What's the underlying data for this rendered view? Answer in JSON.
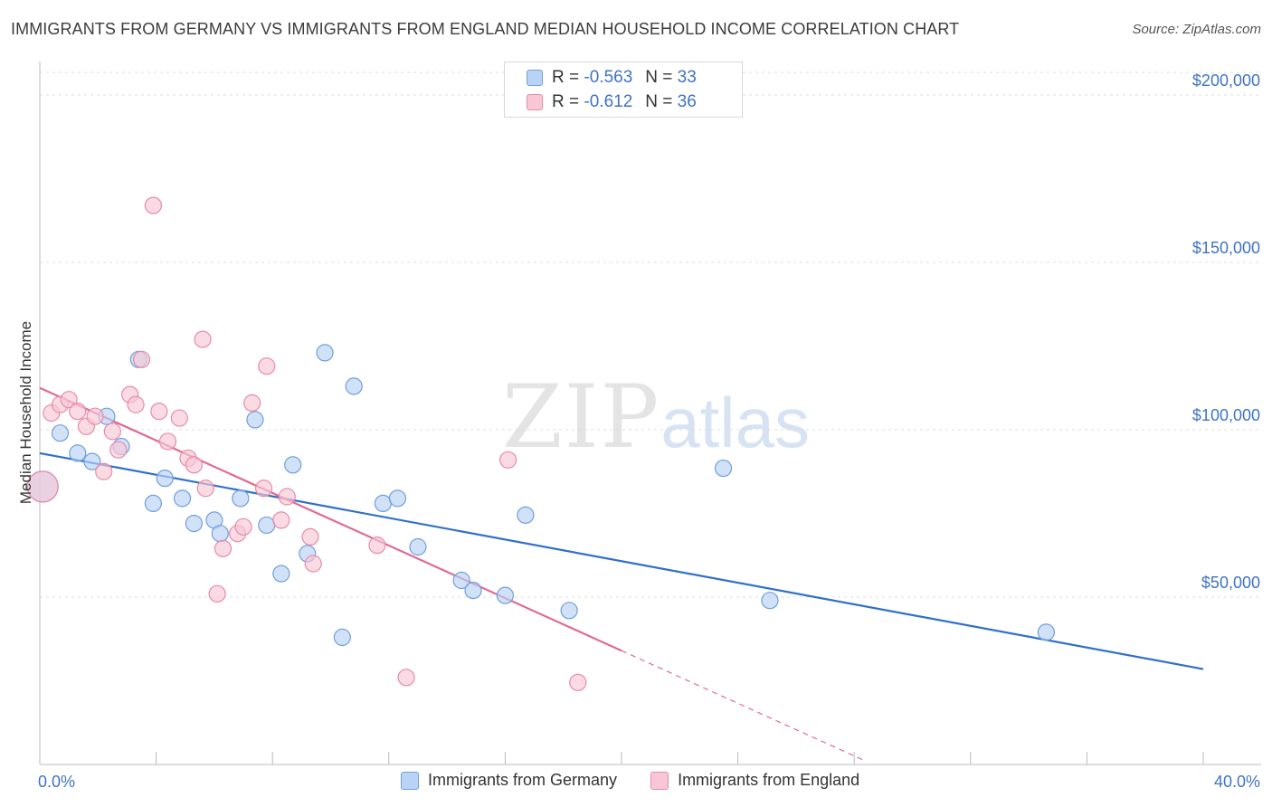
{
  "header": {
    "title": "IMMIGRANTS FROM GERMANY VS IMMIGRANTS FROM ENGLAND MEDIAN HOUSEHOLD INCOME CORRELATION CHART",
    "source": "Source: ZipAtlas.com"
  },
  "watermark": {
    "part1": "ZIP",
    "part2": "atlas"
  },
  "colors": {
    "germany_fill": "#b9d3f5",
    "germany_stroke": "#6f9fdd",
    "germany_line": "#2f6fcc",
    "england_fill": "#f8c7d6",
    "england_stroke": "#e88aa8",
    "england_line": "#e06a94",
    "tick_text": "#3f73c4",
    "grid": "#dcdcdc"
  },
  "legend": {
    "rows": [
      {
        "r_label": "R =",
        "r_value": "-0.563",
        "n_label": "N =",
        "n_value": "33"
      },
      {
        "r_label": "R =",
        "r_value": "-0.612",
        "n_label": "N =",
        "n_value": "36"
      }
    ]
  },
  "chart_data": {
    "type": "scatter",
    "title": "IMMIGRANTS FROM GERMANY VS IMMIGRANTS FROM ENGLAND MEDIAN HOUSEHOLD INCOME CORRELATION CHART",
    "xlabel": "",
    "ylabel": "Median Household Income",
    "xlim": [
      0,
      40
    ],
    "ylim": [
      0,
      210000
    ],
    "x_tick_labels": [
      "0.0%",
      "40.0%"
    ],
    "y_ticks": [
      50000,
      100000,
      150000,
      200000
    ],
    "y_tick_labels": [
      "$50,000",
      "$100,000",
      "$150,000",
      "$200,000"
    ],
    "grid": true,
    "legend_position": "top-center",
    "series": [
      {
        "name": "Immigrants from Germany",
        "r": -0.563,
        "n": 33,
        "trend": {
          "x": [
            0,
            40
          ],
          "y": [
            93000,
            28500
          ]
        },
        "points": [
          {
            "x": 0.1,
            "y": 83000,
            "big": true
          },
          {
            "x": 0.7,
            "y": 99000
          },
          {
            "x": 1.3,
            "y": 93000
          },
          {
            "x": 1.8,
            "y": 90500
          },
          {
            "x": 2.3,
            "y": 104000
          },
          {
            "x": 2.8,
            "y": 95000
          },
          {
            "x": 3.4,
            "y": 121000
          },
          {
            "x": 3.9,
            "y": 78000
          },
          {
            "x": 4.3,
            "y": 85500
          },
          {
            "x": 4.9,
            "y": 79500
          },
          {
            "x": 5.3,
            "y": 72000
          },
          {
            "x": 6.0,
            "y": 73000
          },
          {
            "x": 6.2,
            "y": 69000
          },
          {
            "x": 6.9,
            "y": 79500
          },
          {
            "x": 7.4,
            "y": 103000
          },
          {
            "x": 7.8,
            "y": 71500
          },
          {
            "x": 8.3,
            "y": 57000
          },
          {
            "x": 8.7,
            "y": 89500
          },
          {
            "x": 9.2,
            "y": 63000
          },
          {
            "x": 9.8,
            "y": 123000
          },
          {
            "x": 10.4,
            "y": 38000
          },
          {
            "x": 10.8,
            "y": 113000
          },
          {
            "x": 11.8,
            "y": 78000
          },
          {
            "x": 12.3,
            "y": 79500
          },
          {
            "x": 13.0,
            "y": 65000
          },
          {
            "x": 14.5,
            "y": 55000
          },
          {
            "x": 14.9,
            "y": 52000
          },
          {
            "x": 16.0,
            "y": 50500
          },
          {
            "x": 16.7,
            "y": 74500
          },
          {
            "x": 18.2,
            "y": 46000
          },
          {
            "x": 23.5,
            "y": 88500
          },
          {
            "x": 25.1,
            "y": 49000
          },
          {
            "x": 34.6,
            "y": 39500
          }
        ]
      },
      {
        "name": "Immigrants from England",
        "r": -0.612,
        "n": 36,
        "trend": {
          "x": [
            0,
            20
          ],
          "y": [
            112500,
            34000
          ]
        },
        "trend_dashed": {
          "x": [
            20,
            28.4
          ],
          "y": [
            34000,
            1000
          ]
        },
        "points": [
          {
            "x": 0.1,
            "y": 83000,
            "big": true
          },
          {
            "x": 0.4,
            "y": 105000
          },
          {
            "x": 0.7,
            "y": 107500
          },
          {
            "x": 1.0,
            "y": 109000
          },
          {
            "x": 1.3,
            "y": 105500
          },
          {
            "x": 1.6,
            "y": 101000
          },
          {
            "x": 1.9,
            "y": 104000
          },
          {
            "x": 2.2,
            "y": 87500
          },
          {
            "x": 2.5,
            "y": 99500
          },
          {
            "x": 2.7,
            "y": 94000
          },
          {
            "x": 3.1,
            "y": 110500
          },
          {
            "x": 3.3,
            "y": 107500
          },
          {
            "x": 3.5,
            "y": 121000
          },
          {
            "x": 3.9,
            "y": 167000
          },
          {
            "x": 4.1,
            "y": 105500
          },
          {
            "x": 4.4,
            "y": 96500
          },
          {
            "x": 4.8,
            "y": 103500
          },
          {
            "x": 5.1,
            "y": 91500
          },
          {
            "x": 5.3,
            "y": 89500
          },
          {
            "x": 5.7,
            "y": 82500
          },
          {
            "x": 5.6,
            "y": 127000
          },
          {
            "x": 6.1,
            "y": 51000
          },
          {
            "x": 6.3,
            "y": 64500
          },
          {
            "x": 6.8,
            "y": 69000
          },
          {
            "x": 7.0,
            "y": 71000
          },
          {
            "x": 7.3,
            "y": 108000
          },
          {
            "x": 7.7,
            "y": 82500
          },
          {
            "x": 7.8,
            "y": 119000
          },
          {
            "x": 8.3,
            "y": 73000
          },
          {
            "x": 8.5,
            "y": 80000
          },
          {
            "x": 9.3,
            "y": 68000
          },
          {
            "x": 9.4,
            "y": 60000
          },
          {
            "x": 11.6,
            "y": 65500
          },
          {
            "x": 12.6,
            "y": 26000
          },
          {
            "x": 16.1,
            "y": 91000
          },
          {
            "x": 18.5,
            "y": 24500
          }
        ]
      }
    ]
  }
}
